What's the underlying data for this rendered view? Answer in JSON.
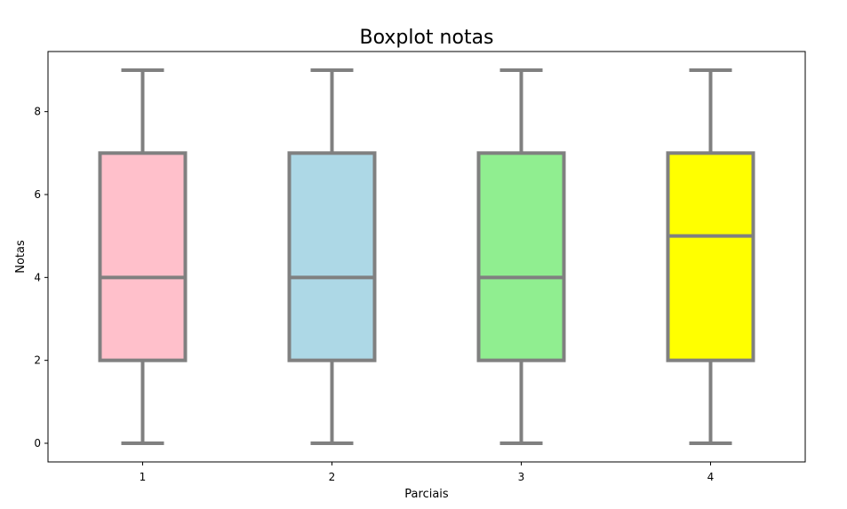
{
  "chart_data": {
    "type": "boxplot",
    "title": "Boxplot notas",
    "xlabel": "Parciais",
    "ylabel": "Notas",
    "categories": [
      "1",
      "2",
      "3",
      "4"
    ],
    "ylim": [
      -0.45,
      9.45
    ],
    "yticks": [
      0,
      2,
      4,
      6,
      8
    ],
    "grid": false,
    "line_color": "#808080",
    "boxes": [
      {
        "category": "1",
        "min": 0,
        "q1": 2,
        "median": 4,
        "q3": 7,
        "max": 9,
        "color": "#ffc0cb"
      },
      {
        "category": "2",
        "min": 0,
        "q1": 2,
        "median": 4,
        "q3": 7,
        "max": 9,
        "color": "#add8e6"
      },
      {
        "category": "3",
        "min": 0,
        "q1": 2,
        "median": 4,
        "q3": 7,
        "max": 9,
        "color": "#90ee90"
      },
      {
        "category": "4",
        "min": 0,
        "q1": 2,
        "median": 5,
        "q3": 7,
        "max": 9,
        "color": "#ffff00"
      }
    ]
  }
}
